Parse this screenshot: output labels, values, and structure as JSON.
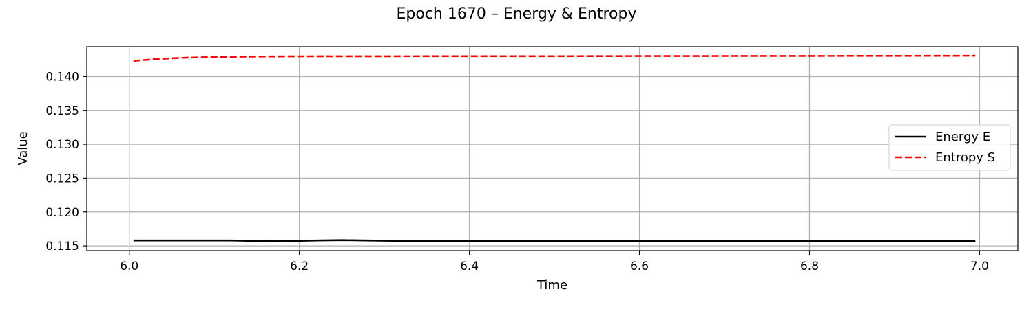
{
  "chart_data": {
    "type": "line",
    "title": "Epoch 1670 – Energy & Entropy",
    "xlabel": "Time",
    "ylabel": "Value",
    "xlim": [
      5.95,
      7.045
    ],
    "ylim": [
      0.1143,
      0.1444
    ],
    "xticks": [
      6.0,
      6.2,
      6.4,
      6.6,
      6.8,
      7.0
    ],
    "xtick_labels": [
      "6.0",
      "6.2",
      "6.4",
      "6.6",
      "6.8",
      "7.0"
    ],
    "yticks": [
      0.115,
      0.12,
      0.125,
      0.13,
      0.135,
      0.14
    ],
    "ytick_labels": [
      "0.115",
      "0.120",
      "0.125",
      "0.130",
      "0.135",
      "0.140"
    ],
    "grid": true,
    "legend_position": "center-right",
    "series": [
      {
        "name": "Energy E",
        "color": "#000000",
        "style": "solid",
        "x": [
          6.005,
          6.05,
          6.1,
          6.12,
          6.14,
          6.17,
          6.2,
          6.22,
          6.25,
          6.28,
          6.31,
          6.35,
          6.4,
          6.5,
          6.6,
          6.7,
          6.8,
          6.9,
          6.995
        ],
        "y": [
          0.1158,
          0.1158,
          0.1158,
          0.1158,
          0.11575,
          0.1157,
          0.11575,
          0.1158,
          0.11585,
          0.1158,
          0.11575,
          0.11575,
          0.11575,
          0.11575,
          0.11575,
          0.11575,
          0.11575,
          0.11575,
          0.11575
        ]
      },
      {
        "name": "Entropy S",
        "color": "#ff0000",
        "style": "dashed",
        "x": [
          6.005,
          6.03,
          6.06,
          6.1,
          6.15,
          6.2,
          6.3,
          6.4,
          6.5,
          6.6,
          6.7,
          6.8,
          6.9,
          6.995
        ],
        "y": [
          0.1423,
          0.14255,
          0.14275,
          0.14288,
          0.14295,
          0.14298,
          0.14299,
          0.143,
          0.143,
          0.14302,
          0.14303,
          0.14304,
          0.14305,
          0.14307
        ]
      }
    ]
  }
}
